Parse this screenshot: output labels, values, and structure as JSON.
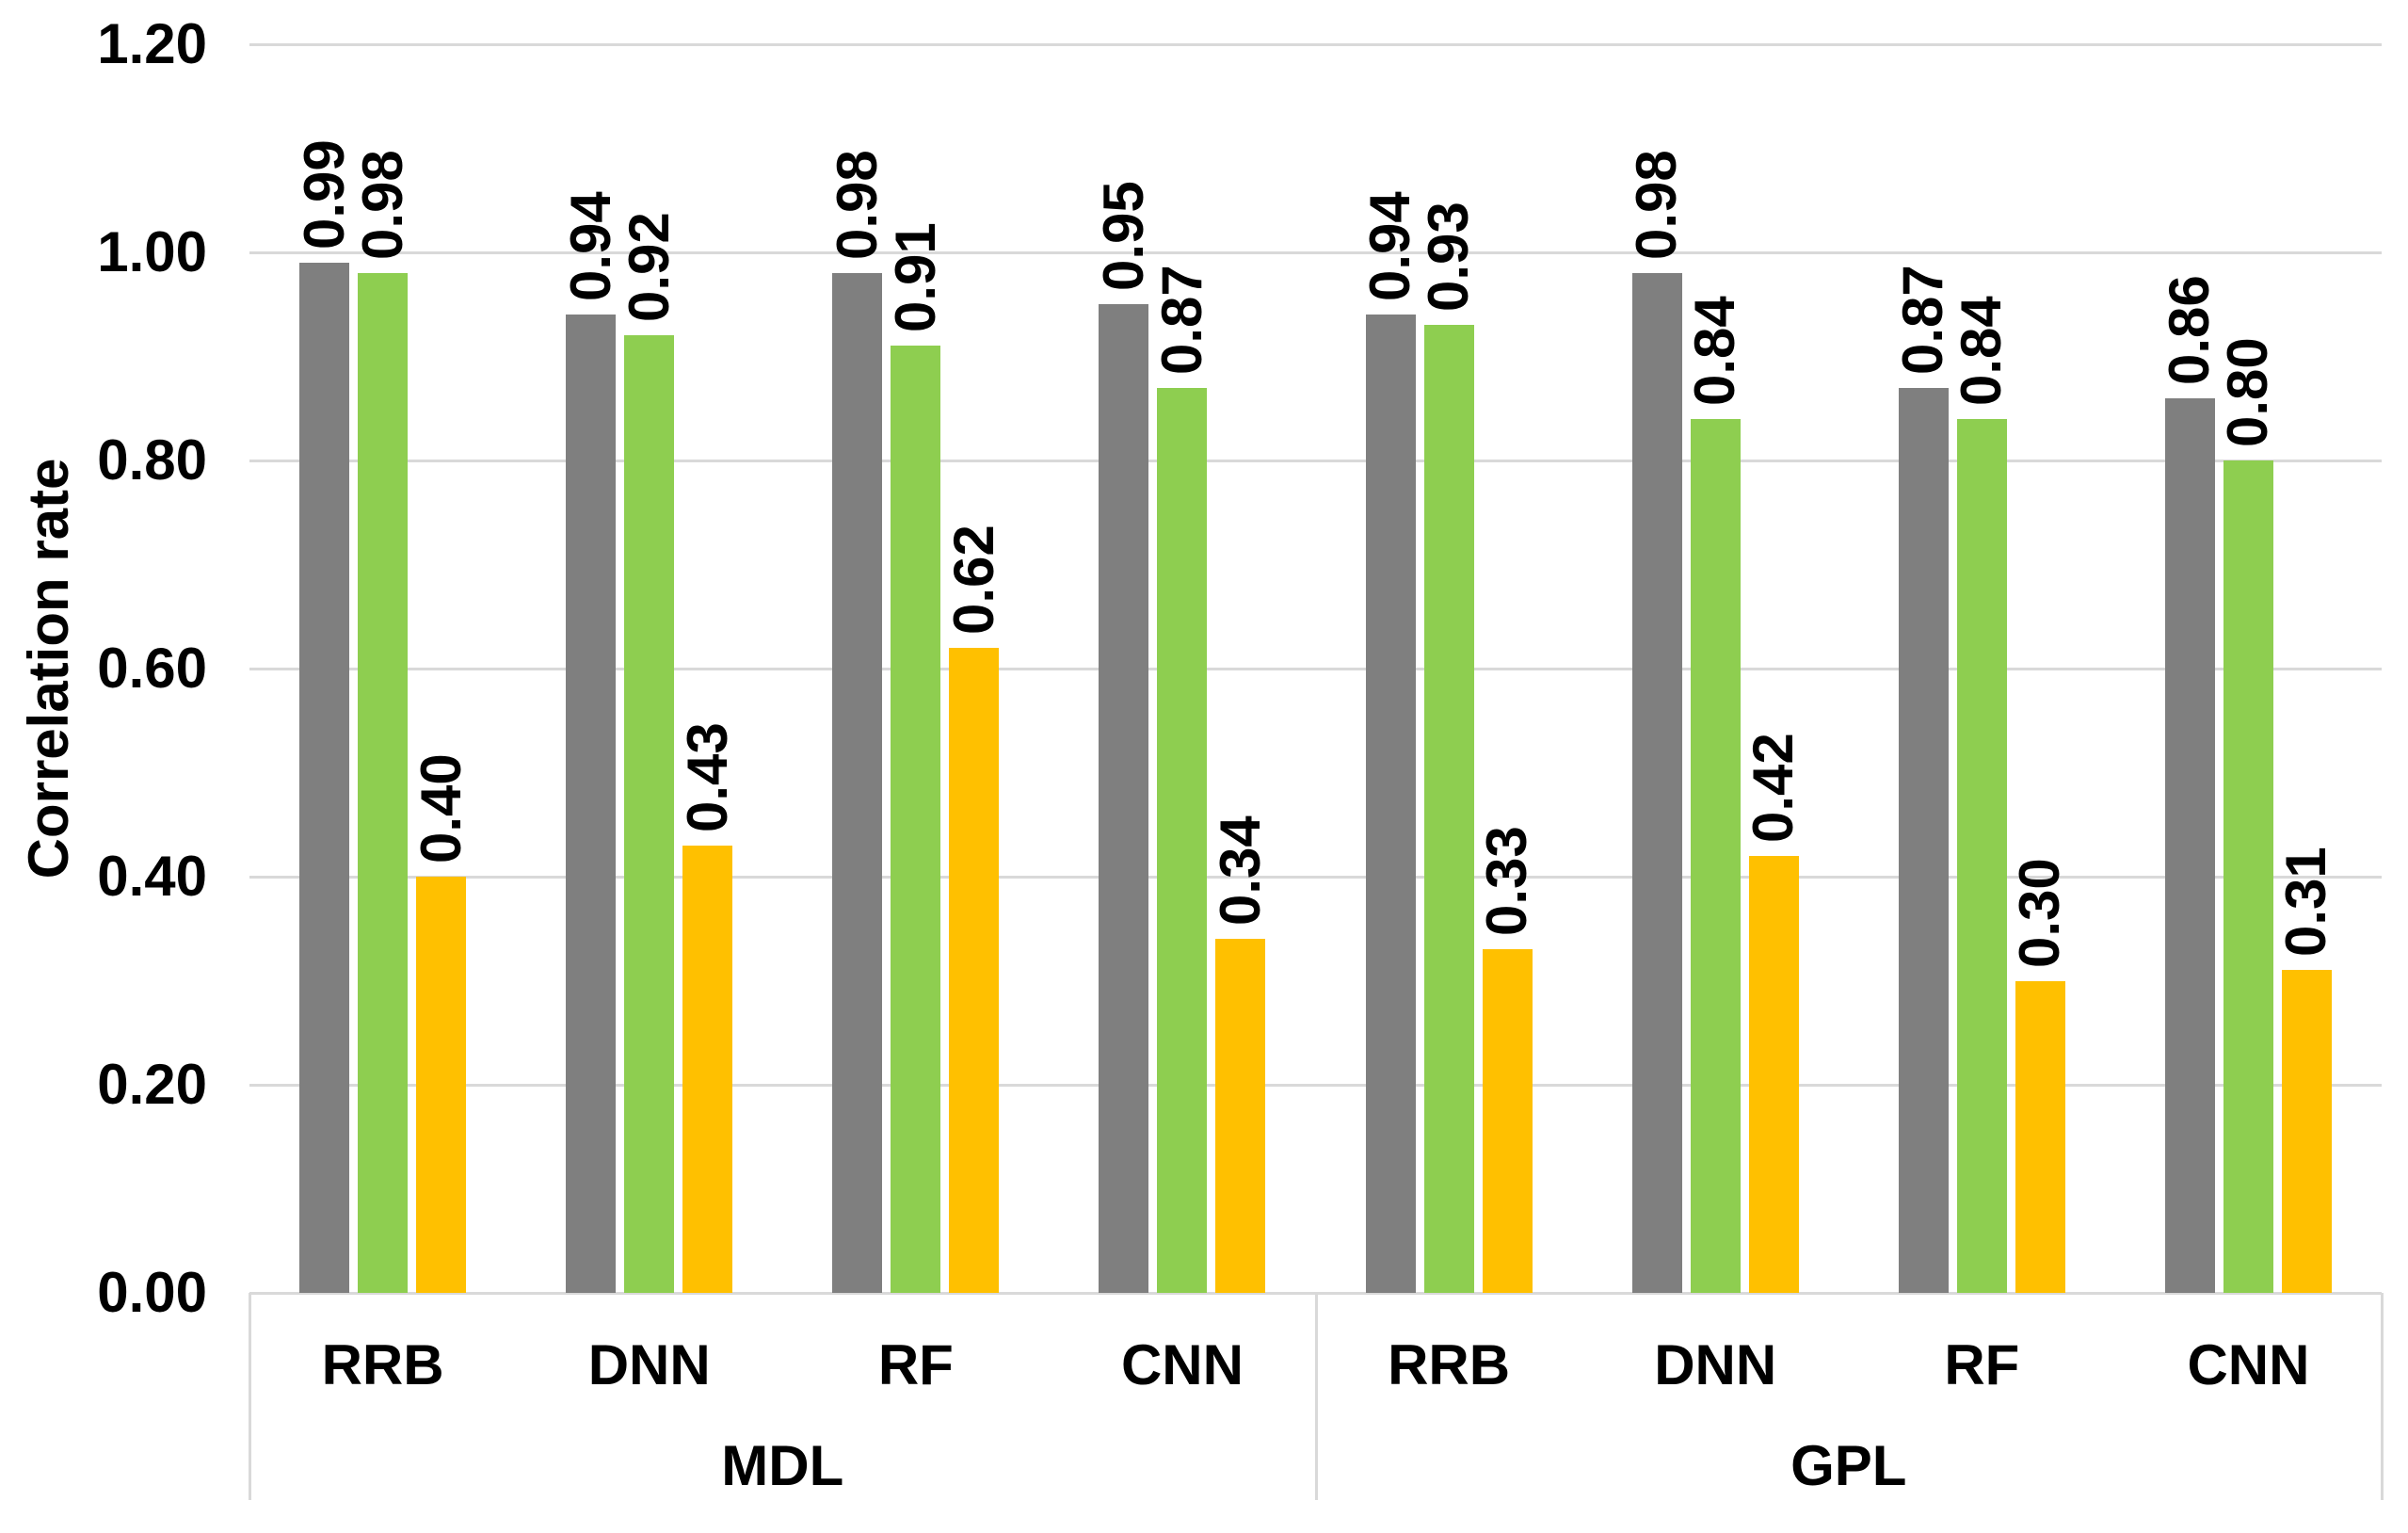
{
  "chart_data": {
    "type": "bar",
    "title": "",
    "ylabel": "Correlation rate",
    "xlabel": "",
    "ylim": [
      0,
      1.2
    ],
    "ytick_step": 0.2,
    "yticks": [
      0.0,
      0.2,
      0.4,
      0.6,
      0.8,
      1.0,
      1.2
    ],
    "ytick_labels": [
      "0.00",
      "0.20",
      "0.40",
      "0.60",
      "0.80",
      "1.00",
      "1.20"
    ],
    "grid": true,
    "legend": "none",
    "value_label_format": "0.00",
    "value_labels_rotated_90": true,
    "groups": [
      {
        "label": "MDL",
        "categories": [
          "RRB",
          "DNN",
          "RF",
          "CNN"
        ]
      },
      {
        "label": "GPL",
        "categories": [
          "RRB",
          "DNN",
          "RF",
          "CNN"
        ]
      }
    ],
    "series": [
      {
        "color_name": "gray",
        "color": "#7F7F7F",
        "values": [
          0.99,
          0.94,
          0.98,
          0.95,
          0.94,
          0.98,
          0.87,
          0.86
        ]
      },
      {
        "color_name": "green",
        "color": "#8ECE50",
        "values": [
          0.98,
          0.92,
          0.91,
          0.87,
          0.93,
          0.84,
          0.84,
          0.8
        ]
      },
      {
        "color_name": "orange",
        "color": "#FFC000",
        "values": [
          0.4,
          0.43,
          0.62,
          0.34,
          0.33,
          0.42,
          0.3,
          0.31
        ]
      }
    ],
    "colors": {
      "gridline": "#D9D9D9",
      "axis_line": "#D9D9D9",
      "text": "#000000",
      "background": "#FFFFFF"
    }
  }
}
